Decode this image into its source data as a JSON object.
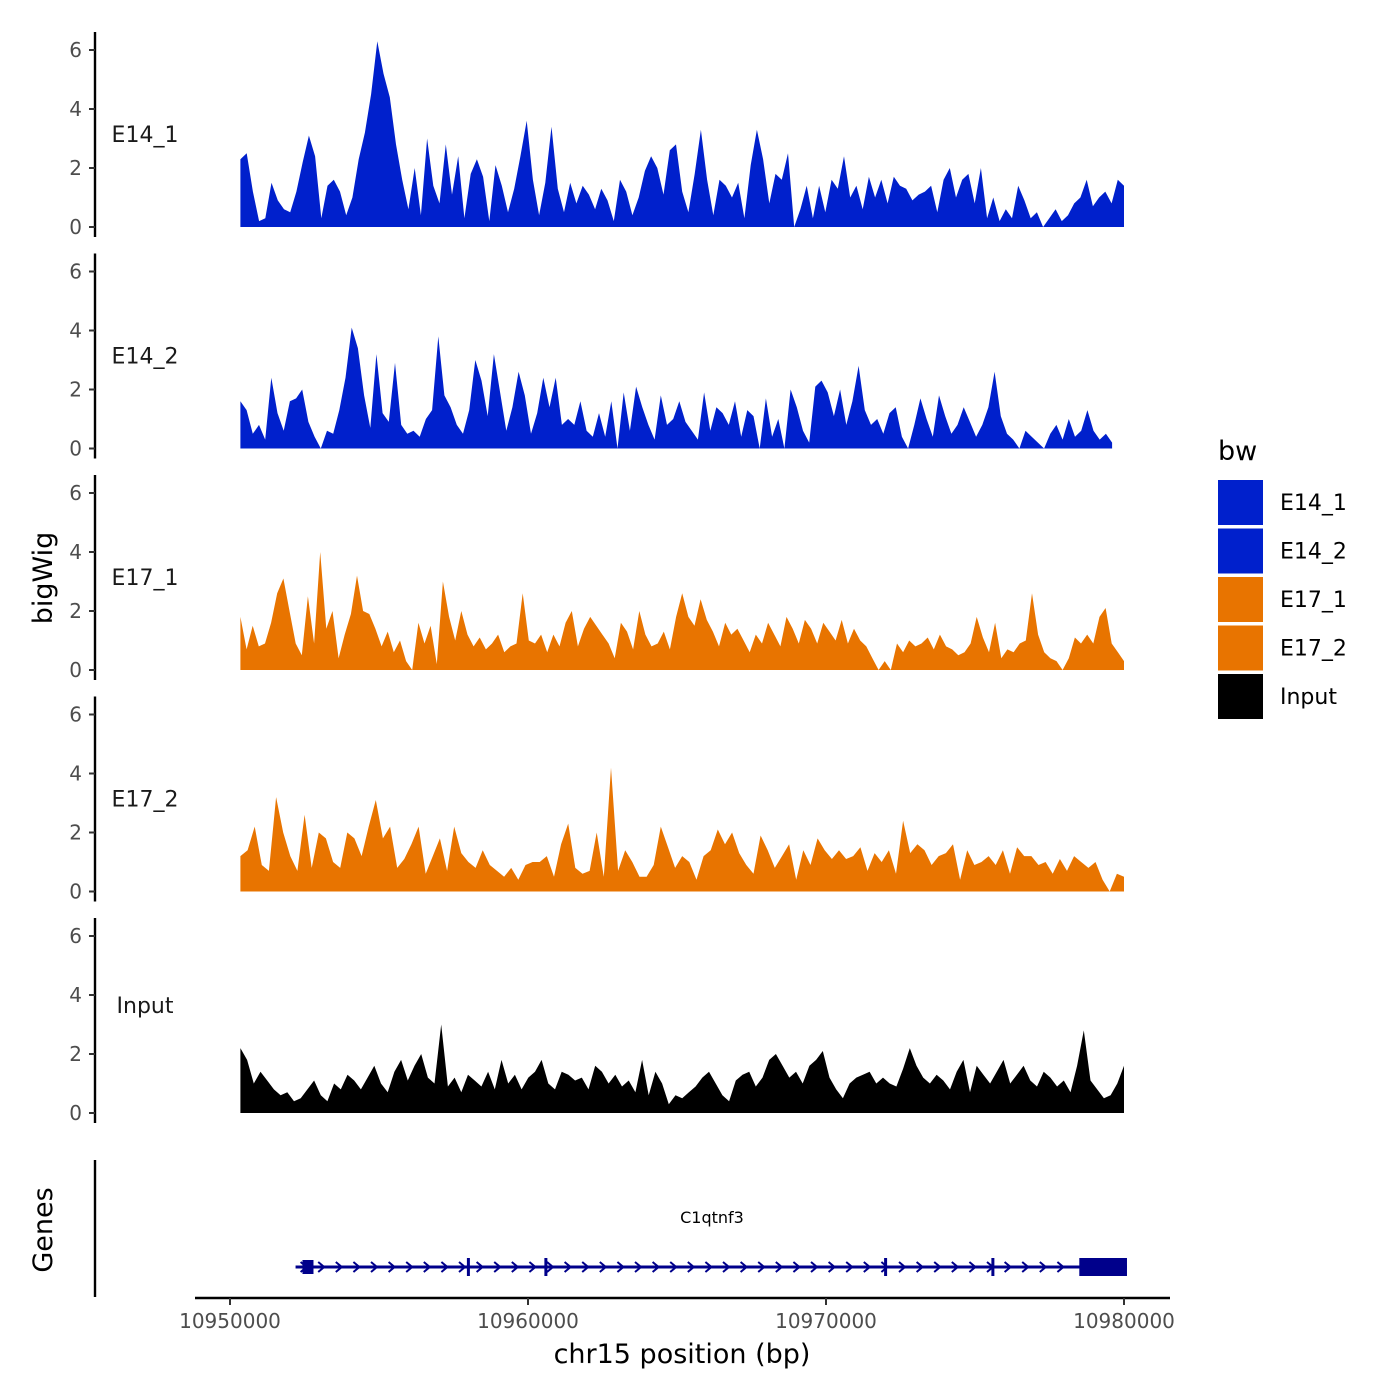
{
  "chart_data": {
    "type": "area",
    "x_axis": {
      "label": "chr15 position (bp)",
      "range": [
        10950000,
        10980000
      ],
      "ticks": [
        {
          "value": 10950000,
          "label": "10950000"
        },
        {
          "value": 10960000,
          "label": "10960000"
        },
        {
          "value": 10970000,
          "label": "10970000"
        },
        {
          "value": 10980000,
          "label": "10980000"
        }
      ]
    },
    "y_axis": {
      "label": "bigWig",
      "range": [
        0,
        6.5
      ],
      "ticks": [
        {
          "value": 0,
          "label": "0"
        },
        {
          "value": 2,
          "label": "2"
        },
        {
          "value": 4,
          "label": "4"
        },
        {
          "value": 6,
          "label": "6"
        }
      ]
    },
    "legend": {
      "title": "bw",
      "placement": "right",
      "items": [
        {
          "label": "E14_1",
          "color": "#0020CC"
        },
        {
          "label": "E14_2",
          "color": "#0020CC"
        },
        {
          "label": "E17_1",
          "color": "#E87400"
        },
        {
          "label": "E17_2",
          "color": "#E87400"
        },
        {
          "label": "Input",
          "color": "#000000"
        }
      ]
    },
    "tracks": [
      {
        "name": "E14_1",
        "color": "#0020CC",
        "x_start": 10950350,
        "x_end": 10980000,
        "values": [
          2.3,
          2.5,
          1.2,
          0.2,
          0.3,
          1.5,
          0.9,
          0.6,
          0.5,
          1.2,
          2.2,
          3.1,
          2.4,
          0.3,
          1.4,
          1.6,
          1.2,
          0.4,
          1.0,
          2.3,
          3.2,
          4.5,
          6.3,
          5.2,
          4.4,
          2.8,
          1.6,
          0.6,
          2.0,
          0.4,
          3.0,
          1.4,
          0.8,
          2.8,
          1.1,
          2.4,
          0.3,
          1.8,
          2.3,
          1.7,
          0.2,
          2.1,
          1.4,
          0.5,
          1.3,
          2.4,
          3.6,
          1.6,
          0.4,
          1.5,
          3.4,
          1.3,
          0.5,
          1.5,
          0.8,
          1.4,
          1.1,
          0.6,
          1.3,
          0.9,
          0.2,
          1.6,
          1.2,
          0.4,
          1.0,
          1.9,
          2.4,
          2.0,
          1.1,
          2.6,
          2.8,
          1.2,
          0.5,
          1.8,
          3.3,
          1.6,
          0.4,
          1.6,
          1.4,
          1.0,
          1.5,
          0.3,
          2.1,
          3.3,
          2.3,
          0.8,
          1.8,
          1.6,
          2.5,
          0,
          0.6,
          1.4,
          0.3,
          1.4,
          0.5,
          1.6,
          1.3,
          2.4,
          1.0,
          1.4,
          0.6,
          1.7,
          1.0,
          1.6,
          0.8,
          1.7,
          1.4,
          1.3,
          0.9,
          1.1,
          1.2,
          1.4,
          0.5,
          1.6,
          2.0,
          1.0,
          1.6,
          1.8,
          0.8,
          2.0,
          0.3,
          1.0,
          0.2,
          0.6,
          0.3,
          1.4,
          0.9,
          0.3,
          0.5,
          0.0,
          0.3,
          0.6,
          0.2,
          0.4,
          0.8,
          1.0,
          1.6,
          0.7,
          1.0,
          1.2,
          0.8,
          1.6,
          1.4
        ]
      },
      {
        "name": "E14_2",
        "color": "#0020CC",
        "x_start": 10950350,
        "x_end": 10979600,
        "values": [
          1.6,
          1.3,
          0.5,
          0.8,
          0.3,
          2.4,
          1.2,
          0.6,
          1.6,
          1.7,
          2.0,
          0.9,
          0.4,
          0,
          0.6,
          0.5,
          1.3,
          2.4,
          4.1,
          3.4,
          1.8,
          0.7,
          3.2,
          1.2,
          0.9,
          2.9,
          0.8,
          0.5,
          0.6,
          0.4,
          1.0,
          1.3,
          3.8,
          1.8,
          1.4,
          0.8,
          0.5,
          1.3,
          3.0,
          2.3,
          1.1,
          3.2,
          1.9,
          0.6,
          1.4,
          2.6,
          1.8,
          0.5,
          1.2,
          2.4,
          1.4,
          2.4,
          0.8,
          1.0,
          0.8,
          1.6,
          0.6,
          0.4,
          1.2,
          0.4,
          1.6,
          0,
          1.9,
          0.6,
          2.1,
          1.4,
          0.8,
          0.3,
          1.8,
          0.8,
          1.0,
          1.6,
          0.9,
          0.6,
          0.3,
          1.9,
          0.6,
          1.4,
          1.2,
          0.8,
          1.6,
          0.4,
          1.3,
          1.1,
          0,
          1.7,
          0.4,
          1.0,
          0,
          2.0,
          1.4,
          0.6,
          0.2,
          2.1,
          2.3,
          1.9,
          1.1,
          2.0,
          0.8,
          1.6,
          2.8,
          1.3,
          0.8,
          1.0,
          0.5,
          1.2,
          1.4,
          0.4,
          0,
          0.8,
          1.7,
          1.0,
          0.4,
          1.8,
          1.1,
          0.5,
          0.8,
          1.4,
          0.9,
          0.4,
          0.8,
          1.4,
          2.6,
          1.1,
          0.5,
          0.3,
          0,
          0.6,
          0.4,
          0.2,
          0,
          0.5,
          0.8,
          0.3,
          1.0,
          0.4,
          0.6,
          1.3,
          0.6,
          0.3,
          0.5,
          0.2
        ]
      },
      {
        "name": "E17_1",
        "color": "#E87400",
        "x_start": 10950350,
        "x_end": 10980000,
        "values": [
          1.8,
          0.7,
          1.5,
          0.8,
          0.9,
          1.6,
          2.6,
          3.1,
          2.0,
          0.9,
          0.5,
          2.5,
          0.9,
          4.0,
          1.4,
          2.0,
          0.4,
          1.2,
          1.9,
          3.2,
          2.0,
          1.9,
          1.4,
          0.8,
          1.3,
          0.6,
          1.0,
          0.3,
          0.0,
          1.6,
          0.9,
          1.5,
          0.2,
          3.0,
          1.8,
          1.0,
          2.0,
          1.2,
          0.8,
          1.1,
          0.7,
          0.9,
          1.2,
          0.6,
          0.8,
          0.9,
          2.6,
          1.0,
          0.9,
          1.2,
          0.6,
          1.2,
          0.8,
          1.6,
          2.0,
          0.8,
          1.4,
          1.8,
          1.5,
          1.2,
          0.9,
          0.4,
          1.6,
          1.3,
          0.7,
          2.0,
          1.2,
          0.8,
          0.9,
          1.3,
          0.7,
          1.8,
          2.6,
          1.8,
          1.5,
          2.4,
          1.7,
          1.3,
          0.8,
          1.6,
          1.2,
          1.4,
          1.0,
          0.6,
          1.2,
          0.9,
          1.6,
          1.2,
          0.8,
          1.8,
          1.4,
          0.9,
          1.7,
          1.4,
          0.9,
          1.6,
          1.3,
          1.0,
          1.7,
          0.9,
          1.4,
          1.0,
          0.8,
          0.4,
          0,
          0.3,
          0,
          0.9,
          0.6,
          1.0,
          0.8,
          0.9,
          1.1,
          0.7,
          1.2,
          0.8,
          0.7,
          0.5,
          0.6,
          0.9,
          1.8,
          1.1,
          0.6,
          1.6,
          0.4,
          0.7,
          0.6,
          0.9,
          1.0,
          2.6,
          1.2,
          0.6,
          0.4,
          0.3,
          0,
          0.4,
          1.1,
          0.9,
          1.2,
          0.9,
          1.8,
          2.1,
          0.9,
          0.6,
          0.3
        ]
      },
      {
        "name": "E17_2",
        "color": "#E87400",
        "x_start": 10950350,
        "x_end": 10980000,
        "values": [
          1.2,
          1.4,
          2.2,
          0.9,
          0.7,
          3.2,
          2.0,
          1.2,
          0.7,
          2.6,
          0.8,
          2.0,
          1.8,
          1.0,
          0.8,
          2.0,
          1.8,
          1.2,
          2.2,
          3.1,
          1.8,
          2.2,
          0.8,
          1.1,
          1.6,
          2.2,
          0.6,
          1.2,
          1.8,
          0.7,
          2.2,
          1.3,
          1.0,
          0.8,
          1.4,
          0.9,
          0.7,
          0.5,
          0.8,
          0.4,
          0.9,
          1.0,
          1.0,
          1.2,
          0.5,
          1.6,
          2.3,
          0.8,
          0.6,
          0.7,
          2.0,
          0.5,
          4.2,
          0.7,
          1.4,
          1.0,
          0.5,
          0.5,
          0.9,
          2.2,
          1.5,
          0.8,
          1.2,
          1.0,
          0.4,
          1.2,
          1.4,
          2.1,
          1.6,
          2.0,
          1.3,
          0.9,
          0.6,
          1.9,
          1.4,
          0.8,
          1.2,
          1.6,
          0.4,
          1.4,
          0.9,
          1.8,
          1.4,
          1.1,
          1.4,
          1.1,
          1.2,
          1.5,
          0.7,
          1.3,
          1.0,
          1.4,
          0.6,
          2.4,
          1.3,
          1.6,
          1.4,
          0.9,
          1.2,
          1.3,
          1.6,
          0.4,
          1.4,
          0.9,
          1.0,
          1.2,
          0.9,
          1.4,
          0.6,
          1.5,
          1.2,
          1.2,
          0.9,
          1.0,
          0.6,
          1.1,
          0.7,
          1.2,
          1.0,
          0.8,
          1.0,
          0.4,
          0,
          0.6,
          0.5
        ]
      },
      {
        "name": "Input",
        "color": "#000000",
        "x_start": 10950350,
        "x_end": 10980000,
        "values": [
          2.2,
          1.8,
          1.0,
          1.4,
          1.1,
          0.8,
          0.6,
          0.7,
          0.4,
          0.5,
          0.8,
          1.1,
          0.6,
          0.4,
          1.0,
          0.8,
          1.3,
          1.1,
          0.8,
          1.2,
          1.6,
          1.0,
          0.7,
          1.4,
          1.8,
          1.1,
          1.6,
          2.0,
          1.2,
          1.0,
          3.0,
          0.9,
          1.2,
          0.7,
          1.3,
          1.1,
          0.9,
          1.4,
          0.8,
          1.8,
          1.0,
          1.3,
          0.8,
          1.2,
          1.4,
          1.8,
          1.0,
          0.8,
          1.4,
          1.3,
          1.1,
          1.2,
          0.8,
          1.6,
          1.4,
          1.0,
          1.3,
          0.9,
          1.1,
          0.7,
          1.8,
          0.6,
          1.4,
          1.0,
          0.3,
          0.6,
          0.5,
          0.7,
          0.9,
          1.2,
          1.4,
          1.0,
          0.6,
          0.4,
          1.1,
          1.3,
          1.4,
          0.9,
          1.2,
          1.8,
          2.0,
          1.6,
          1.2,
          1.4,
          1.0,
          1.6,
          1.8,
          2.1,
          1.2,
          0.8,
          0.5,
          1.0,
          1.2,
          1.3,
          1.4,
          1.0,
          1.2,
          1.0,
          0.9,
          1.5,
          2.2,
          1.6,
          1.2,
          1.0,
          1.3,
          1.1,
          0.8,
          1.4,
          1.8,
          0.7,
          1.6,
          1.3,
          1.0,
          1.4,
          1.8,
          1.0,
          1.3,
          1.6,
          1.1,
          0.9,
          1.4,
          1.2,
          0.9,
          1.1,
          0.7,
          1.6,
          2.8,
          1.1,
          0.8,
          0.5,
          0.6,
          1.0,
          1.6
        ]
      }
    ],
    "gene_track": {
      "label": "Genes",
      "gene_name": "C1qtnf3",
      "strand": "+",
      "color": "#00008B",
      "start": 10952200,
      "end": 10980100,
      "exon_marks": [
        10952600,
        10958000,
        10960600,
        10972000,
        10975600
      ],
      "utr_block": [
        10978500,
        10980100
      ]
    }
  }
}
